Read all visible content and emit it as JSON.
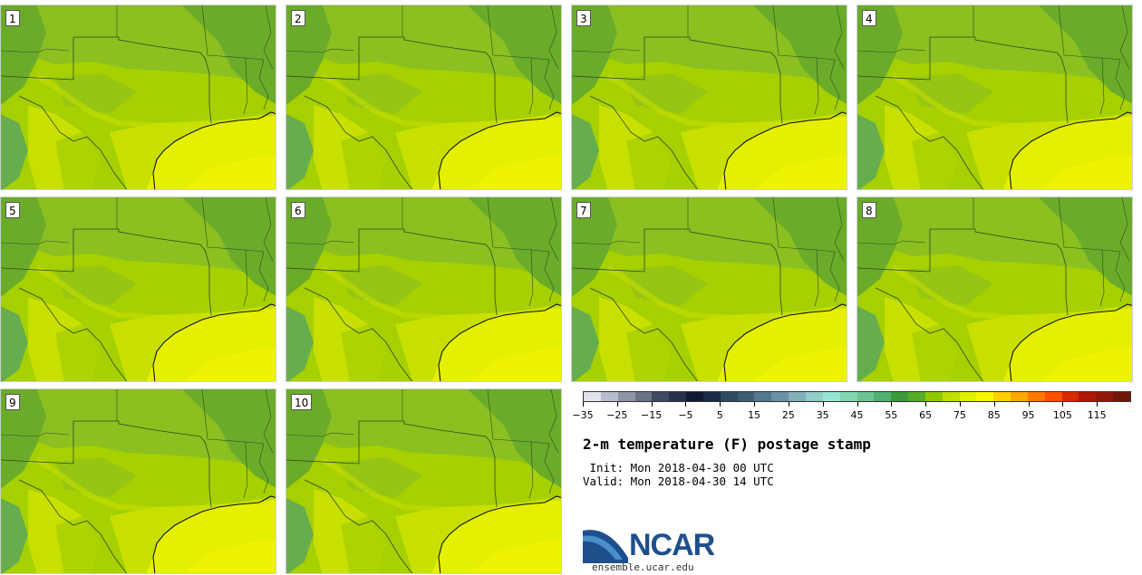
{
  "title": "2-m temperature (F) postage stamp",
  "init_text": " Init: Mon 2018-04-30 00 UTC",
  "valid_text": "Valid: Mon 2018-04-30 14 UTC",
  "panels": [
    {
      "label": "1"
    },
    {
      "label": "2"
    },
    {
      "label": "3"
    },
    {
      "label": "4"
    },
    {
      "label": "5"
    },
    {
      "label": "6"
    },
    {
      "label": "7"
    },
    {
      "label": "8"
    },
    {
      "label": "9"
    },
    {
      "label": "10"
    }
  ],
  "map_colors": {
    "warm_gulf": "#e5f000",
    "yellow_green": "#c8e000",
    "mid_green": "#a6d000",
    "green": "#8cc020",
    "dark_green": "#6aac2a",
    "teal_green": "#5aa85a",
    "border_line": "#2f4a20"
  },
  "colorbar": {
    "colors": [
      "#dfe3ec",
      "#b6bccc",
      "#8d94a6",
      "#6a7285",
      "#404a60",
      "#283248",
      "#101a30",
      "#1a2a48",
      "#2e4a60",
      "#3e5e72",
      "#507890",
      "#6892a6",
      "#80b0b8",
      "#90ccc8",
      "#98e6d6",
      "#80d8b0",
      "#6cc492",
      "#50b070",
      "#3c9a3a",
      "#58ac28",
      "#90c800",
      "#c0de00",
      "#e0f000",
      "#f8f800",
      "#ffd000",
      "#ffa800",
      "#ff7800",
      "#ff5000",
      "#d82800",
      "#b01808",
      "#901808",
      "#701808"
    ],
    "tick_labels": [
      "−35",
      "−25",
      "−15",
      "−5",
      "5",
      "15",
      "25",
      "35",
      "45",
      "55",
      "65",
      "75",
      "85",
      "95",
      "105",
      "115"
    ]
  },
  "logo": {
    "text": "NCAR",
    "url": "ensemble.ucar.edu",
    "colors": {
      "dark": "#1d4f8c",
      "light": "#4a90c8"
    }
  }
}
